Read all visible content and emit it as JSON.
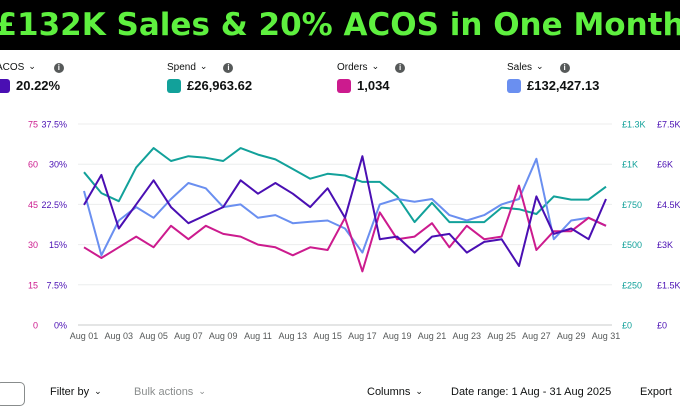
{
  "banner": {
    "title": "£132K Sales & 20% ACOS in One Month"
  },
  "metrics": [
    {
      "label": "ACOS",
      "value": "20.22%",
      "color": "#4a0fb3"
    },
    {
      "label": "Spend",
      "value": "£26,963.62",
      "color": "#12a19a"
    },
    {
      "label": "Orders",
      "value": "1,034",
      "color": "#cc1b8e"
    },
    {
      "label": "Sales",
      "value": "£132,427.13",
      "color": "#6a8ff0"
    }
  ],
  "toolbar": {
    "filter_label": "Filter by",
    "bulk_label": "Bulk actions",
    "columns_label": "Columns",
    "date_range_label": "Date range: 1 Aug - 31 Aug 2025",
    "export_label": "Export"
  },
  "chart_data": {
    "type": "line",
    "x": [
      "Aug 01",
      "Aug 02",
      "Aug 03",
      "Aug 04",
      "Aug 05",
      "Aug 06",
      "Aug 07",
      "Aug 08",
      "Aug 09",
      "Aug 10",
      "Aug 11",
      "Aug 12",
      "Aug 13",
      "Aug 14",
      "Aug 15",
      "Aug 16",
      "Aug 17",
      "Aug 18",
      "Aug 19",
      "Aug 20",
      "Aug 21",
      "Aug 22",
      "Aug 23",
      "Aug 24",
      "Aug 25",
      "Aug 26",
      "Aug 27",
      "Aug 28",
      "Aug 29",
      "Aug 30",
      "Aug 31"
    ],
    "x_tick_labels": [
      "Aug 01",
      "Aug 03",
      "Aug 05",
      "Aug 07",
      "Aug 09",
      "Aug 11",
      "Aug 13",
      "Aug 15",
      "Aug 17",
      "Aug 19",
      "Aug 21",
      "Aug 23",
      "Aug 25",
      "Aug 27",
      "Aug 29",
      "Aug 31"
    ],
    "axes": [
      {
        "side": "left",
        "ticks": [
          "0",
          "15",
          "30",
          "45",
          "60",
          "75"
        ],
        "range": [
          0,
          75
        ],
        "color": "#cc1b8e"
      },
      {
        "side": "left",
        "ticks": [
          "0%",
          "7.5%",
          "15%",
          "22.5%",
          "30%",
          "37.5%"
        ],
        "range": [
          0,
          37.5
        ],
        "color": "#4a0fb3"
      },
      {
        "side": "right",
        "ticks": [
          "£0",
          "£250",
          "£500",
          "£750",
          "£1K",
          "£1.3K"
        ],
        "range": [
          0,
          1250
        ],
        "color": "#12a19a"
      },
      {
        "side": "right",
        "ticks": [
          "£0",
          "£1.5K",
          "£3K",
          "£4.5K",
          "£6K",
          "£7.5K"
        ],
        "range": [
          0,
          7500
        ],
        "color": "#4a0fb3"
      }
    ],
    "series": [
      {
        "name": "ACOS",
        "axis": 1,
        "color": "#4a0fb3",
        "values": [
          22.4,
          28.0,
          18.0,
          22.5,
          27.0,
          22.0,
          19.0,
          20.5,
          22.0,
          27.0,
          24.5,
          26.5,
          24.5,
          22.0,
          25.5,
          20.0,
          31.5,
          16.0,
          16.5,
          13.5,
          16.5,
          17.0,
          13.5,
          15.5,
          16.0,
          11.0,
          24.0,
          17.0,
          18.0,
          16.0,
          23.5
        ]
      },
      {
        "name": "Spend",
        "axis": 2,
        "color": "#12a19a",
        "values": [
          950,
          820,
          770,
          980,
          1100,
          1020,
          1050,
          1040,
          1020,
          1100,
          1060,
          1030,
          970,
          910,
          940,
          930,
          890,
          890,
          800,
          640,
          760,
          640,
          640,
          640,
          730,
          720,
          690,
          800,
          780,
          780,
          860
        ]
      },
      {
        "name": "Orders",
        "axis": 0,
        "color": "#cc1b8e",
        "values": [
          29,
          25,
          29,
          33,
          29,
          37,
          32,
          37,
          34,
          33,
          30,
          29,
          26,
          29,
          28,
          40,
          20,
          42,
          32,
          33,
          38,
          29,
          37,
          32,
          33,
          52,
          28,
          35,
          35,
          40,
          37
        ]
      },
      {
        "name": "Sales",
        "axis": 3,
        "color": "#6a8ff0",
        "values": [
          5000,
          2600,
          3900,
          4400,
          4000,
          4700,
          5300,
          5100,
          4400,
          4500,
          4000,
          4100,
          3800,
          3850,
          3900,
          3600,
          2700,
          4500,
          4700,
          4600,
          4700,
          4100,
          3900,
          4100,
          4500,
          4700,
          6200,
          3200,
          3900,
          4000,
          3700
        ]
      }
    ]
  }
}
